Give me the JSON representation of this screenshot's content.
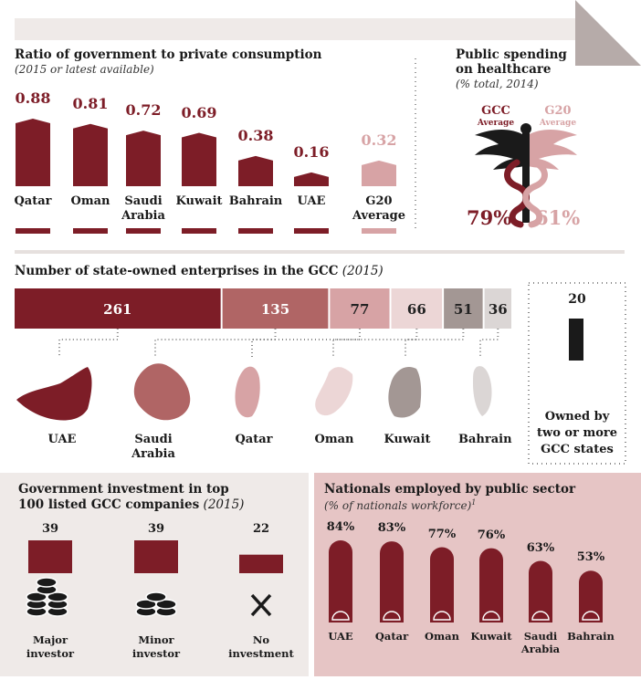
{
  "colors": {
    "maroon": "#7d1d27",
    "rose": "#d7a3a5",
    "paper": "#f1ecea",
    "pinkpanel": "#e6c5c5",
    "grey": "#a39794"
  },
  "ratio": {
    "title": "Ratio of government to private consumption",
    "subtitle": "(2015 or latest available)"
  },
  "health": {
    "title_line1": "Public spending",
    "title_line2": "on healthcare",
    "subtitle": "(% total, 2014)",
    "gcc_label": "GCC",
    "gcc_sub": "Average",
    "g20_label": "G20",
    "g20_sub": "Average",
    "gcc_value": "79%",
    "g20_value": "61%"
  },
  "soe": {
    "title": "Number of state-owned enterprises in the GCC",
    "title_year": "(2015)",
    "joint_value": "20",
    "joint_label_1": "Owned by",
    "joint_label_2": "two or more",
    "joint_label_3": "GCC states"
  },
  "invest": {
    "title_1": "Government investment in top",
    "title_2": "100 listed GCC companies",
    "title_year": "(2015)"
  },
  "nationals": {
    "title": "Nationals employed by public sector",
    "subtitle": "(% of nationals workforce)"
  },
  "chart_data": [
    {
      "type": "bar",
      "title": "Ratio of government to private consumption",
      "subtitle": "(2015 or latest available)",
      "categories": [
        "Qatar",
        "Oman",
        "Saudi Arabia",
        "Kuwait",
        "Bahrain",
        "UAE",
        "G20 Average"
      ],
      "labels": [
        [
          "Qatar"
        ],
        [
          "Oman"
        ],
        [
          "Saudi",
          "Arabia"
        ],
        [
          "Kuwait"
        ],
        [
          "Bahrain"
        ],
        [
          "UAE"
        ],
        [
          "G20",
          "Average"
        ]
      ],
      "values": [
        0.88,
        0.81,
        0.72,
        0.69,
        0.38,
        0.16,
        0.32
      ],
      "value_labels": [
        "0.88",
        "0.81",
        "0.72",
        "0.69",
        "0.38",
        "0.16",
        "0.32"
      ]
    },
    {
      "type": "bar",
      "title": "Number of state-owned enterprises in the GCC (2015)",
      "categories": [
        "UAE",
        "Saudi Arabia",
        "Qatar",
        "Oman",
        "Kuwait",
        "Bahrain"
      ],
      "labels": [
        [
          "UAE"
        ],
        [
          "Saudi",
          "Arabia"
        ],
        [
          "Qatar"
        ],
        [
          "Oman"
        ],
        [
          "Kuwait"
        ],
        [
          "Bahrain"
        ]
      ],
      "values": [
        261,
        135,
        77,
        66,
        51,
        36
      ],
      "value_labels": [
        "261",
        "135",
        "77",
        "66",
        "51",
        "36"
      ],
      "colors": [
        "#7d1d27",
        "#b06565",
        "#d7a3a5",
        "#ecd6d6",
        "#a39794",
        "#dbd6d5"
      ]
    },
    {
      "type": "bar",
      "title": "Government investment in top 100 listed GCC companies (2015)",
      "categories": [
        "Major investor",
        "Minor investor",
        "No investment"
      ],
      "labels": [
        [
          "Major",
          "investor"
        ],
        [
          "Minor",
          "investor"
        ],
        [
          "No",
          "investment"
        ]
      ],
      "values": [
        39,
        39,
        22
      ],
      "value_labels": [
        "39",
        "39",
        "22"
      ]
    },
    {
      "type": "bar",
      "title": "Nationals employed by public sector",
      "subtitle": "(% of nationals workforce)",
      "categories": [
        "UAE",
        "Qatar",
        "Oman",
        "Kuwait",
        "Saudi Arabia",
        "Bahrain"
      ],
      "labels": [
        [
          "UAE"
        ],
        [
          "Qatar"
        ],
        [
          "Oman"
        ],
        [
          "Kuwait"
        ],
        [
          "Saudi",
          "Arabia"
        ],
        [
          "Bahrain"
        ]
      ],
      "values": [
        84,
        83,
        77,
        76,
        63,
        53
      ],
      "value_labels": [
        "84%",
        "83%",
        "77%",
        "76%",
        "63%",
        "53%"
      ]
    }
  ]
}
